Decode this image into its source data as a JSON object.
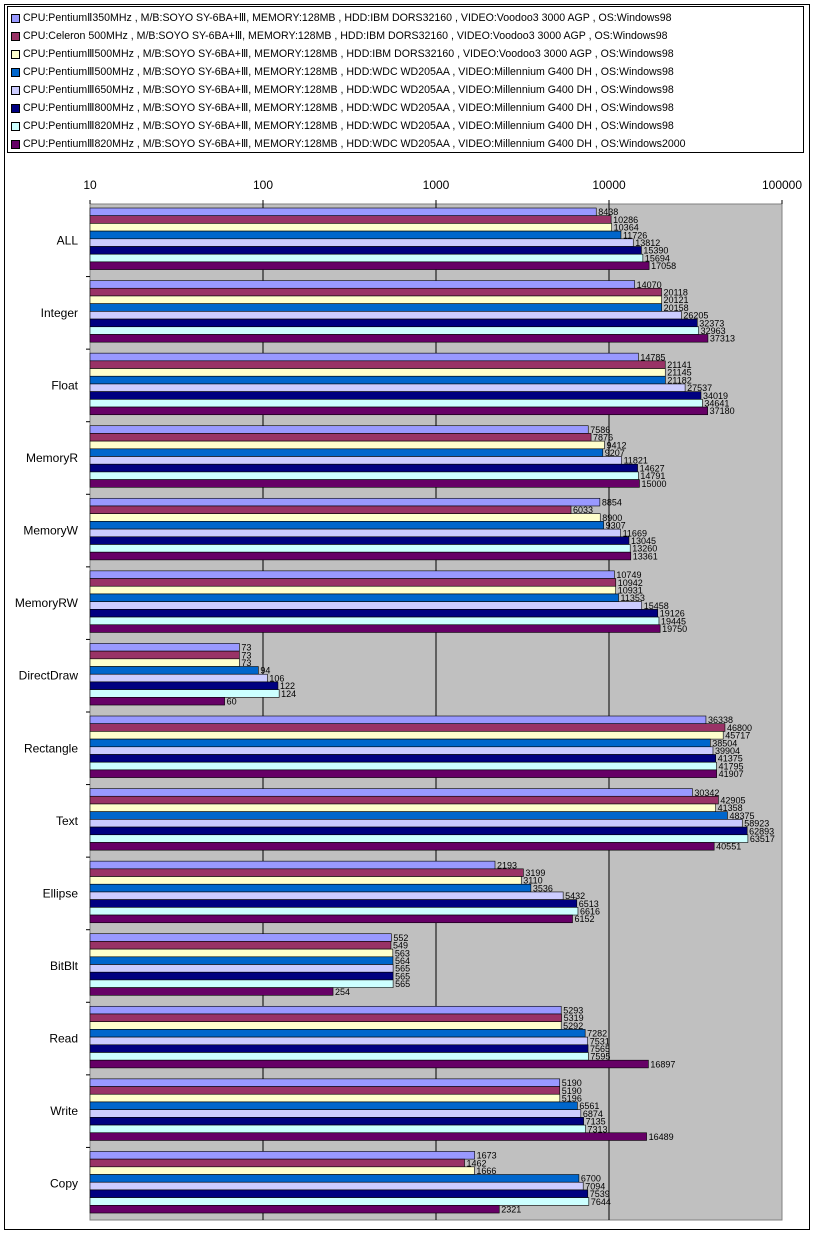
{
  "chart_data": {
    "type": "bar",
    "orientation": "horizontal",
    "x_scale": "log",
    "xlim": [
      10,
      100000
    ],
    "x_ticks": [
      "10",
      "100",
      "1000",
      "10000",
      "100000"
    ],
    "grid": true,
    "legend_position": "top",
    "categories": [
      "ALL",
      "Integer",
      "Float",
      "MemoryR",
      "MemoryW",
      "MemoryRW",
      "DirectDraw",
      "Rectangle",
      "Text",
      "Ellipse",
      "BitBlt",
      "Read",
      "Write",
      "Copy"
    ],
    "series": [
      {
        "name": "CPU:PentiumⅡ350MHz , M/B:SOYO SY-6BA+Ⅲ, MEMORY:128MB , HDD:IBM DORS32160 , VIDEO:Voodoo3 3000 AGP , OS:Windows98",
        "color": "#9999ff",
        "values": [
          8438,
          14070,
          14785,
          7586,
          8854,
          10749,
          73,
          36338,
          30342,
          2193,
          552,
          5293,
          5190,
          1673
        ]
      },
      {
        "name": "CPU:Celeron 500MHz , M/B:SOYO SY-6BA+Ⅲ, MEMORY:128MB , HDD:IBM DORS32160 , VIDEO:Voodoo3 3000 AGP , OS:Windows98",
        "color": "#993366",
        "values": [
          10286,
          20118,
          21141,
          7876,
          6033,
          10942,
          73,
          46800,
          42905,
          3199,
          549,
          5319,
          5190,
          1462
        ]
      },
      {
        "name": "CPU:PentiumⅢ500MHz , M/B:SOYO SY-6BA+Ⅲ, MEMORY:128MB , HDD:IBM DORS32160 , VIDEO:Voodoo3 3000 AGP , OS:Windows98",
        "color": "#ffffcc",
        "values": [
          10364,
          20121,
          21145,
          9412,
          8900,
          10931,
          73,
          45717,
          41358,
          3110,
          563,
          5292,
          5196,
          1666
        ]
      },
      {
        "name": "CPU:PentiumⅢ500MHz , M/B:SOYO SY-6BA+Ⅲ, MEMORY:128MB , HDD:WDC WD205AA , VIDEO:Millennium G400 DH , OS:Windows98",
        "color": "#0066cc",
        "values": [
          11726,
          20158,
          21182,
          9207,
          9307,
          11353,
          94,
          38504,
          48375,
          3536,
          564,
          7282,
          6561,
          6700
        ]
      },
      {
        "name": "CPU:PentiumⅢ650MHz , M/B:SOYO SY-6BA+Ⅲ, MEMORY:128MB , HDD:WDC WD205AA , VIDEO:Millennium G400 DH , OS:Windows98",
        "color": "#ccccff",
        "values": [
          13812,
          26205,
          27537,
          11821,
          11669,
          15458,
          106,
          39904,
          58923,
          5432,
          565,
          7531,
          6874,
          7094
        ]
      },
      {
        "name": "CPU:PentiumⅢ800MHz , M/B:SOYO SY-6BA+Ⅲ, MEMORY:128MB , HDD:WDC WD205AA , VIDEO:Millennium G400 DH , OS:Windows98",
        "color": "#000080",
        "values": [
          15390,
          32373,
          34019,
          14627,
          13045,
          19126,
          122,
          41375,
          62893,
          6513,
          565,
          7565,
          7135,
          7539
        ]
      },
      {
        "name": "CPU:PentiumⅢ820MHz , M/B:SOYO SY-6BA+Ⅲ, MEMORY:128MB , HDD:WDC WD205AA , VIDEO:Millennium G400 DH , OS:Windows98",
        "color": "#ccffff",
        "values": [
          15694,
          32963,
          34641,
          14791,
          13260,
          19445,
          124,
          41795,
          63517,
          6616,
          565,
          7595,
          7313,
          7644
        ]
      },
      {
        "name": "CPU:PentiumⅢ820MHz , M/B:SOYO SY-6BA+Ⅲ, MEMORY:128MB , HDD:WDC WD205AA , VIDEO:Millennium G400 DH , OS:Windows2000",
        "color": "#660066",
        "values": [
          17058,
          37313,
          37180,
          15000,
          13361,
          19750,
          60,
          41907,
          40551,
          6152,
          254,
          16897,
          16489,
          2321
        ]
      }
    ]
  }
}
